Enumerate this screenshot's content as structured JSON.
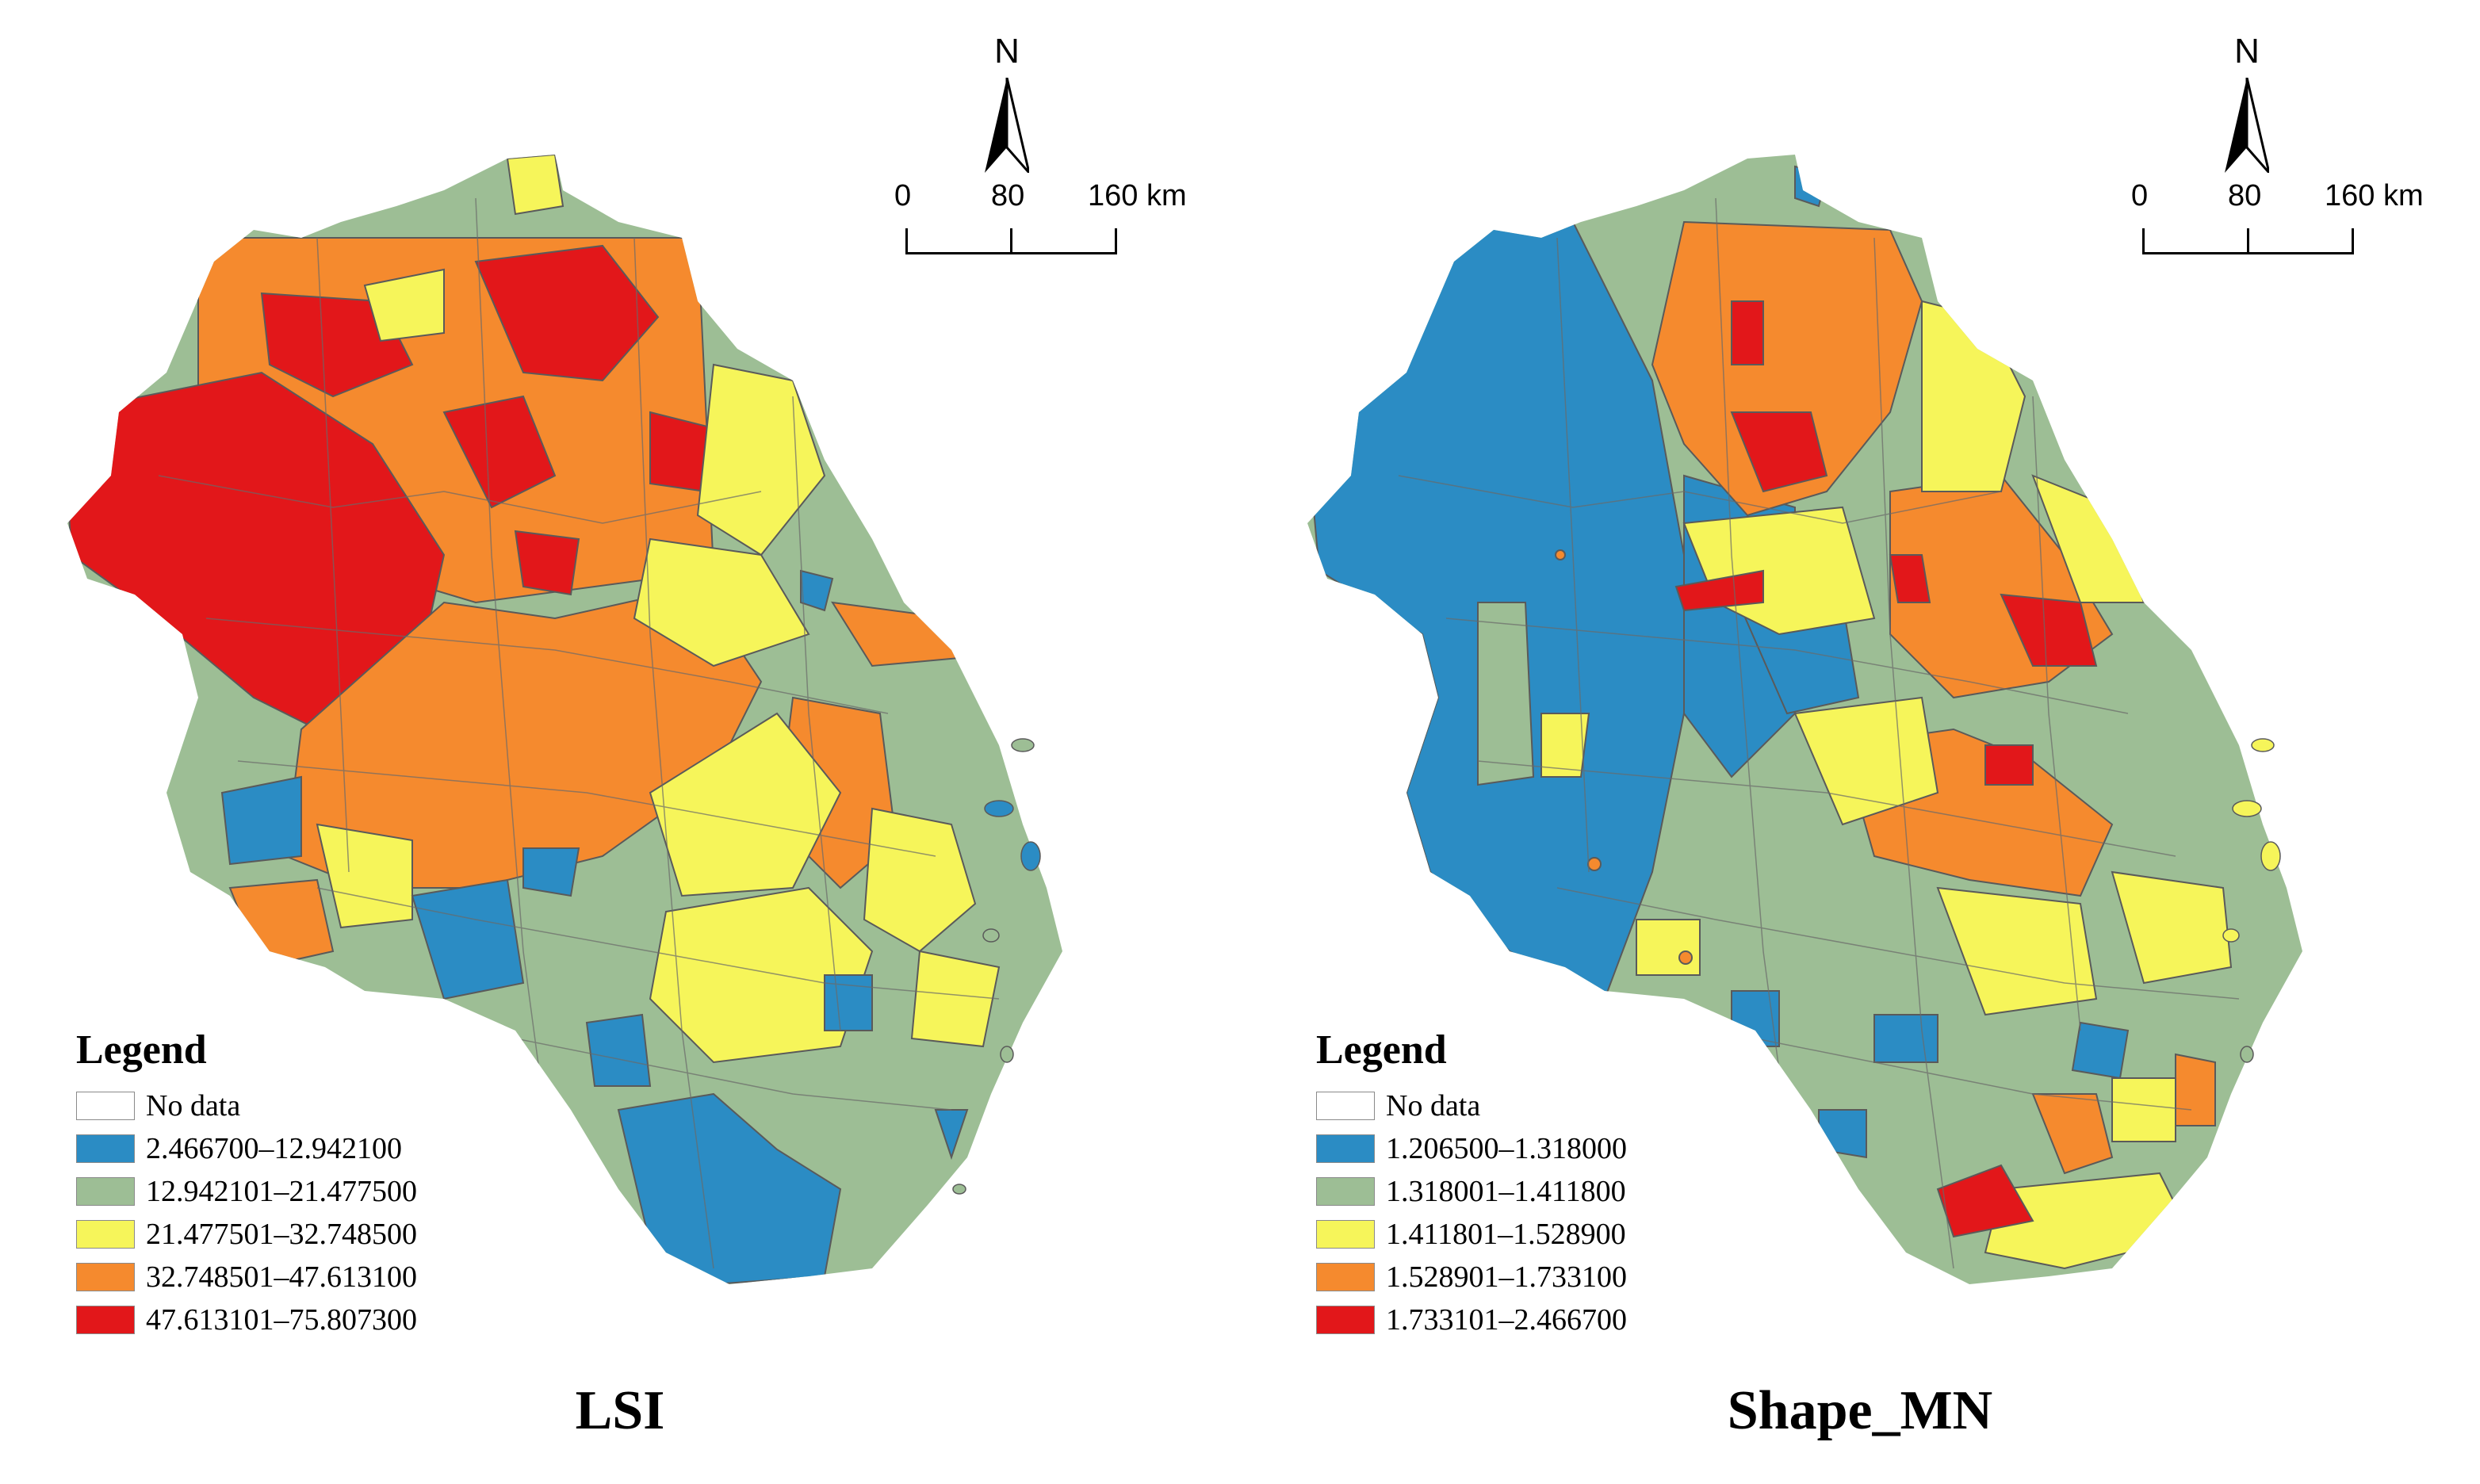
{
  "panels": [
    {
      "title": "LSI",
      "north_label": "N",
      "scale_labels": [
        "0",
        "80",
        "160 km"
      ],
      "legend": {
        "title": "Legend",
        "items": [
          {
            "label": "No data",
            "color": "#ffffff"
          },
          {
            "label": "2.466700–12.942100",
            "color": "#2b8cc4"
          },
          {
            "label": "12.942101–21.477500",
            "color": "#9dbe95"
          },
          {
            "label": "21.477501–32.748500",
            "color": "#f6f55a"
          },
          {
            "label": "32.748501–47.613100",
            "color": "#f58a2e"
          },
          {
            "label": "47.613101–75.807300",
            "color": "#e2171a"
          }
        ]
      }
    },
    {
      "title": "Shape_MN",
      "north_label": "N",
      "scale_labels": [
        "0",
        "80",
        "160 km"
      ],
      "legend": {
        "title": "Legend",
        "items": [
          {
            "label": "No data",
            "color": "#ffffff"
          },
          {
            "label": "1.206500–1.318000",
            "color": "#2b8cc4"
          },
          {
            "label": "1.318001–1.411800",
            "color": "#9dbe95"
          },
          {
            "label": "1.411801–1.528900",
            "color": "#f6f55a"
          },
          {
            "label": "1.528901–1.733100",
            "color": "#f58a2e"
          },
          {
            "label": "1.733101–2.466700",
            "color": "#e2171a"
          }
        ]
      }
    }
  ]
}
